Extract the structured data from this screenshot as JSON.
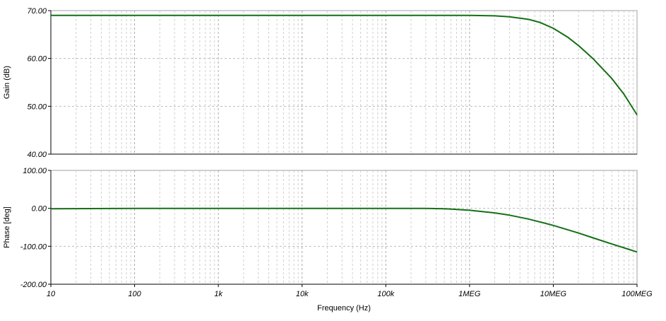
{
  "chart_data": [
    {
      "type": "line",
      "id": "gain",
      "ylabel": "Gain (dB)",
      "xlabel": "",
      "xscale": "log",
      "xlim": [
        10,
        100000000
      ],
      "ylim": [
        40,
        70
      ],
      "yticks": [
        40,
        50,
        60,
        70
      ],
      "ytick_labels": [
        "40.00",
        "50.00",
        "60.00",
        "70.00"
      ],
      "grid": true,
      "series_color": "#157015",
      "series": [
        {
          "name": "",
          "x": [
            10,
            100,
            1000,
            10000,
            100000,
            1000000,
            2000000,
            3000000,
            5000000,
            7000000,
            10000000,
            15000000,
            20000000,
            30000000,
            50000000,
            70000000,
            100000000
          ],
          "y": [
            69.0,
            69.0,
            69.0,
            69.0,
            69.0,
            69.0,
            68.9,
            68.7,
            68.2,
            67.5,
            66.3,
            64.4,
            62.7,
            59.9,
            55.8,
            52.5,
            48.2
          ]
        }
      ]
    },
    {
      "type": "line",
      "id": "phase",
      "ylabel": "Phase [deg]",
      "xlabel": "Frequency (Hz)",
      "xscale": "log",
      "xlim": [
        10,
        100000000
      ],
      "ylim": [
        -200,
        100
      ],
      "yticks": [
        -200,
        -100,
        0,
        100
      ],
      "ytick_labels": [
        "-200.00",
        "-100.00",
        "0.00",
        "100.00"
      ],
      "xticks": [
        10,
        100,
        1000,
        10000,
        100000,
        1000000,
        10000000,
        100000000
      ],
      "xtick_labels": [
        "10",
        "100",
        "1k",
        "10k",
        "100k",
        "1MEG",
        "10MEG",
        "100MEG"
      ],
      "grid": true,
      "series_color": "#157015",
      "series": [
        {
          "name": "",
          "x": [
            10,
            100,
            1000,
            10000,
            100000,
            300000,
            500000,
            1000000,
            2000000,
            3000000,
            5000000,
            7000000,
            10000000,
            20000000,
            30000000,
            50000000,
            70000000,
            100000000
          ],
          "y": [
            -1,
            0,
            0,
            0,
            0,
            0,
            -1,
            -5,
            -12,
            -18,
            -28,
            -36,
            -45,
            -65,
            -78,
            -94,
            -104,
            -115
          ]
        }
      ]
    }
  ]
}
